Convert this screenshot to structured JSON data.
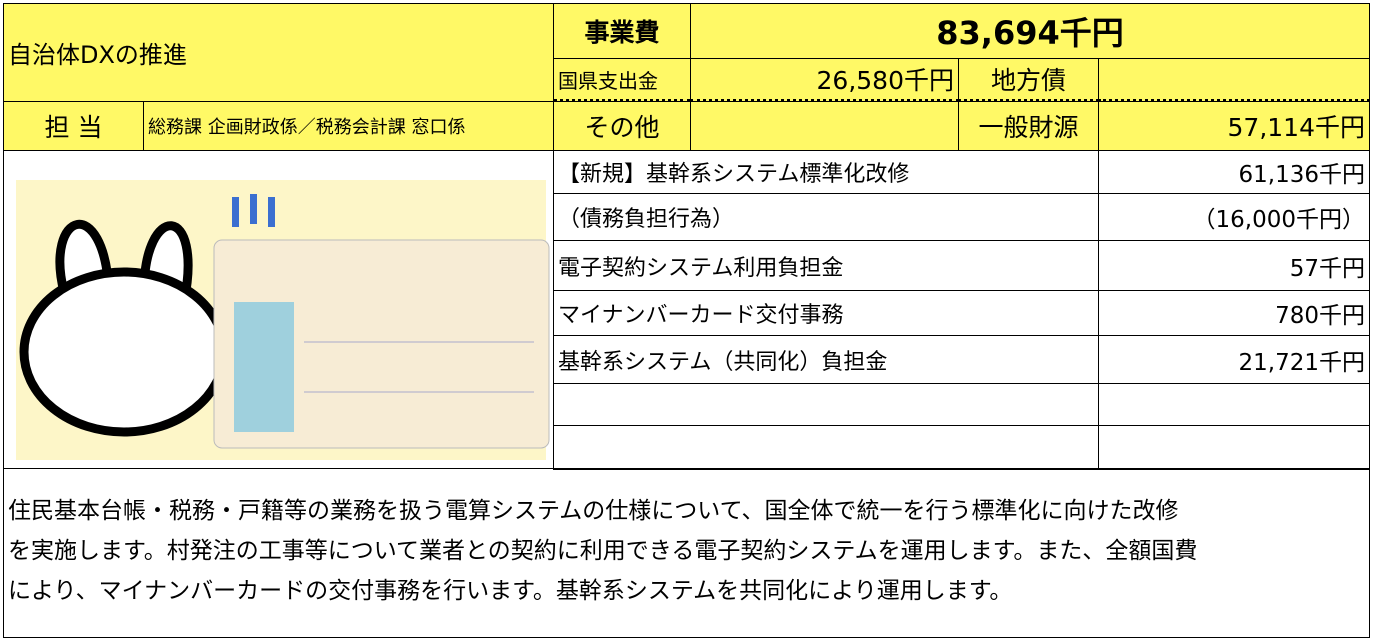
{
  "header": {
    "title": "自治体DXの推進",
    "staff_label": "担 当",
    "staff": "総務課 企画財政係／税務会計課 窓口係"
  },
  "budget": {
    "total_label": "事業費",
    "total": "83,694千円",
    "national_label": "国県支出金",
    "national": "26,580千円",
    "bond_label": "地方債",
    "other_label": "その他",
    "general_label": "一般財源",
    "general": "57,114千円"
  },
  "items": [
    {
      "label": "【新規】基幹系システム標準化改修",
      "amount": "61,136千円"
    },
    {
      "label": "（債務負担行為）",
      "amount": "（16,000千円）"
    },
    {
      "label": "電子契約システム利用負担金",
      "amount": "57千円"
    },
    {
      "label": "マイナンバーカード交付事務",
      "amount": "780千円"
    },
    {
      "label": "基幹系システム（共同化）負担金",
      "amount": "21,721千円"
    }
  ],
  "description": [
    "住民基本台帳・税務・戸籍等の業務を扱う電算システムの仕様について、国全体で統一を行う標準化に向けた改修",
    "を実施します。村発注の工事等について業者との契約に利用できる電子契約システムを運用します。また、全額国費",
    "により、マイナンバーカードの交付事務を行います。基幹系システムを共同化により運用します。"
  ]
}
